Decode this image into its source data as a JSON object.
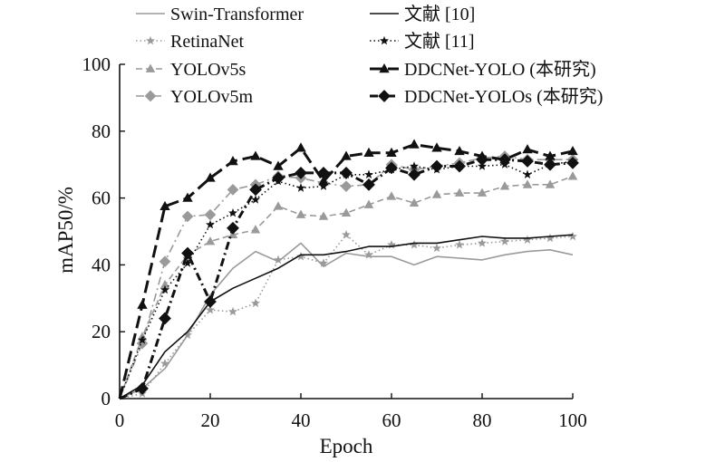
{
  "chart_data": {
    "type": "line",
    "xlabel": "Epoch",
    "ylabel": "mAP50/%",
    "xlim": [
      0,
      100
    ],
    "ylim": [
      0,
      100
    ],
    "x_ticks": [
      0,
      20,
      40,
      60,
      80,
      100
    ],
    "y_ticks": [
      0,
      20,
      40,
      60,
      80,
      100
    ],
    "x_tick_labels": [
      "0",
      "20",
      "40",
      "60",
      "80",
      "100"
    ],
    "y_tick_labels": [
      "0",
      "20",
      "40",
      "60",
      "80",
      "100"
    ],
    "grid": false,
    "legend_position": "top",
    "x": [
      0,
      5,
      10,
      15,
      20,
      25,
      30,
      35,
      40,
      45,
      50,
      55,
      60,
      65,
      70,
      75,
      80,
      85,
      90,
      95,
      100
    ],
    "series": [
      {
        "name": "Swin-Transformer",
        "color": "#9a9a9a",
        "style": "solid",
        "width": 1.6,
        "marker": "none",
        "values": [
          0,
          3,
          9,
          19,
          31,
          39,
          44,
          41,
          46.5,
          39.5,
          43.5,
          42.5,
          42.5,
          40,
          42.5,
          42,
          41.5,
          43,
          44,
          44.5,
          43
        ]
      },
      {
        "name": "RetinaNet",
        "color": "#9a9a9a",
        "style": "dotted",
        "width": 1.6,
        "marker": "star",
        "values": [
          0,
          1.5,
          10.5,
          19,
          26.5,
          26,
          28.5,
          41.5,
          42.5,
          40.5,
          49,
          43,
          46,
          46,
          45,
          46,
          46.5,
          47,
          47.5,
          48,
          48.5
        ]
      },
      {
        "name": "YOLOv5s",
        "color": "#9a9a9a",
        "style": "dashed",
        "width": 1.6,
        "marker": "triangle",
        "values": [
          0,
          18.5,
          34,
          43,
          47,
          49,
          50.5,
          57.5,
          55,
          54.5,
          55.5,
          58,
          60.5,
          58.5,
          61,
          61.5,
          61.5,
          63.5,
          64,
          64,
          66.5
        ]
      },
      {
        "name": "YOLOv5m",
        "color": "#9a9a9a",
        "style": "dashdot",
        "width": 1.6,
        "marker": "diamond",
        "values": [
          0,
          16.5,
          41,
          54.5,
          55,
          62.5,
          64,
          66.5,
          66,
          64.5,
          63.5,
          64,
          70,
          68.5,
          69.5,
          70.5,
          72,
          72.5,
          71.5,
          71.5,
          71.5
        ]
      },
      {
        "name": "文献 [10]",
        "color": "#111111",
        "style": "solid",
        "width": 1.6,
        "marker": "none",
        "values": [
          0,
          4,
          14,
          20,
          29,
          33,
          36,
          39,
          43,
          43,
          44,
          45.5,
          45.5,
          46.5,
          46.5,
          47.5,
          48.5,
          48,
          48,
          48.5,
          49
        ]
      },
      {
        "name": "文献 [11]",
        "color": "#111111",
        "style": "dotted",
        "width": 1.6,
        "marker": "star",
        "values": [
          0,
          17.5,
          32.5,
          40.5,
          52,
          55.5,
          59.5,
          65,
          63,
          63.5,
          67,
          67,
          68.5,
          69.5,
          68.5,
          69.5,
          69.5,
          70,
          67,
          70,
          71
        ]
      },
      {
        "name": "DDCNet-YOLO (本研究)",
        "color": "#111111",
        "style": "longdash",
        "width": 3,
        "marker": "triangle",
        "values": [
          0,
          28,
          57.5,
          60,
          66,
          71,
          72.5,
          69.5,
          75,
          65,
          72.5,
          73.5,
          73.5,
          76,
          75,
          74,
          72.5,
          71.5,
          74.5,
          72.5,
          74
        ]
      },
      {
        "name": "DDCNet-YOLOs (本研究)",
        "color": "#111111",
        "style": "dashdot",
        "width": 3,
        "marker": "diamond",
        "values": [
          0,
          3,
          24,
          43.5,
          29,
          51,
          62.5,
          66,
          67.5,
          67.5,
          67.5,
          64,
          69,
          67,
          69.5,
          69.5,
          71.5,
          71.5,
          71,
          70,
          70.5
        ]
      }
    ]
  }
}
